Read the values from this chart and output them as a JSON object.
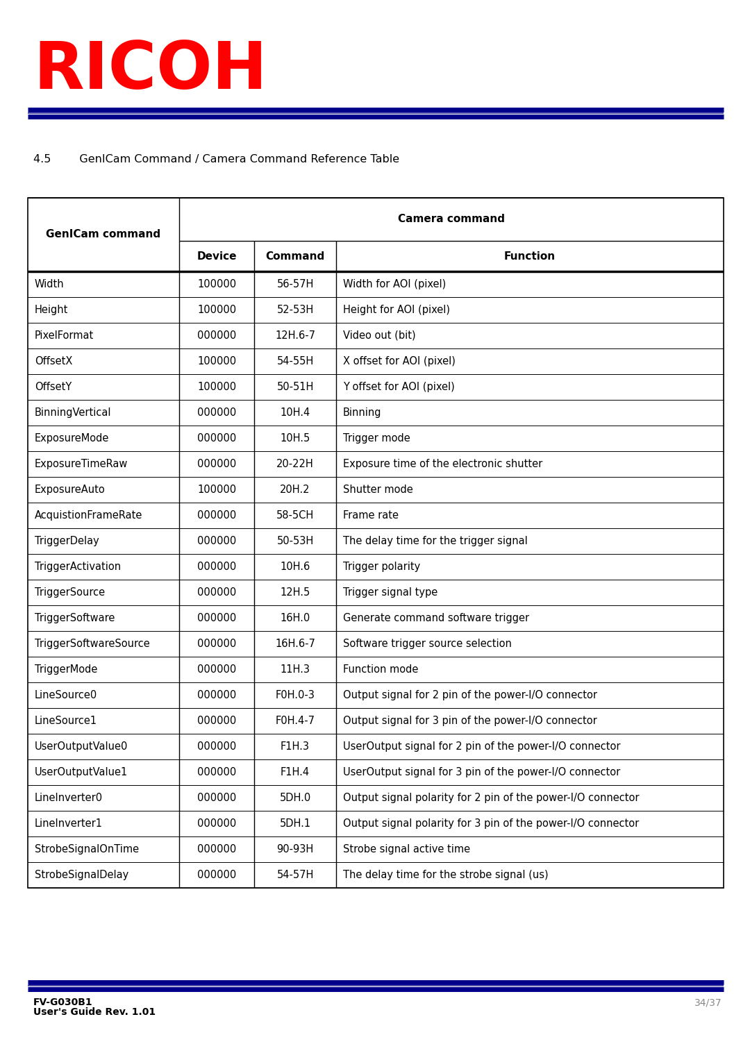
{
  "title_section": "4.5        GenICam Command / Camera Command Reference Table",
  "header_col1": "GenICam command",
  "header_camera": "Camera command",
  "header_device": "Device",
  "header_command": "Command",
  "header_function": "Function",
  "rows": [
    [
      "Width",
      "100000",
      "56-57H",
      "Width for AOI (pixel)"
    ],
    [
      "Height",
      "100000",
      "52-53H",
      "Height for AOI (pixel)"
    ],
    [
      "PixelFormat",
      "000000",
      "12H.6-7",
      "Video out (bit)"
    ],
    [
      "OffsetX",
      "100000",
      "54-55H",
      "X offset for AOI (pixel)"
    ],
    [
      "OffsetY",
      "100000",
      "50-51H",
      "Y offset for AOI (pixel)"
    ],
    [
      "BinningVertical",
      "000000",
      "10H.4",
      "Binning"
    ],
    [
      "ExposureMode",
      "000000",
      "10H.5",
      "Trigger mode"
    ],
    [
      "ExposureTimeRaw",
      "000000",
      "20-22H",
      "Exposure time of the electronic shutter"
    ],
    [
      "ExposureAuto",
      "100000",
      "20H.2",
      "Shutter mode"
    ],
    [
      "AcquistionFrameRate",
      "000000",
      "58-5CH",
      "Frame rate"
    ],
    [
      "TriggerDelay",
      "000000",
      "50-53H",
      "The delay time for the trigger signal"
    ],
    [
      "TriggerActivation",
      "000000",
      "10H.6",
      "Trigger polarity"
    ],
    [
      "TriggerSource",
      "000000",
      "12H.5",
      "Trigger signal type"
    ],
    [
      "TriggerSoftware",
      "000000",
      "16H.0",
      "Generate command software trigger"
    ],
    [
      "TriggerSoftwareSource",
      "000000",
      "16H.6-7",
      "Software trigger source selection"
    ],
    [
      "TriggerMode",
      "000000",
      "11H.3",
      "Function mode"
    ],
    [
      "LineSource0",
      "000000",
      "F0H.0-3",
      "Output signal for 2 pin of the power-I/O connector"
    ],
    [
      "LineSource1",
      "000000",
      "F0H.4-7",
      "Output signal for 3 pin of the power-I/O connector"
    ],
    [
      "UserOutputValue0",
      "000000",
      "F1H.3",
      "UserOutput signal for 2 pin of the power-I/O connector"
    ],
    [
      "UserOutputValue1",
      "000000",
      "F1H.4",
      "UserOutput signal for 3 pin of the power-I/O connector"
    ],
    [
      "LineInverter0",
      "000000",
      "5DH.0",
      "Output signal polarity for 2 pin of the power-I/O connector"
    ],
    [
      "LineInverter1",
      "000000",
      "5DH.1",
      "Output signal polarity for 3 pin of the power-I/O connector"
    ],
    [
      "StrobeSignalOnTime",
      "000000",
      "90-93H",
      "Strobe signal active time"
    ],
    [
      "StrobeSignalDelay",
      "000000",
      "54-57H",
      "The delay time for the strobe signal (us)"
    ]
  ],
  "ricoh_color": "#FF0000",
  "navy_color": "#00008B",
  "table_border_color": "#000000",
  "footer_left1": "FV-G030B1",
  "footer_left2": "User's Guide Rev. 1.01",
  "footer_right": "34/37",
  "bg_color": "#FFFFFF"
}
